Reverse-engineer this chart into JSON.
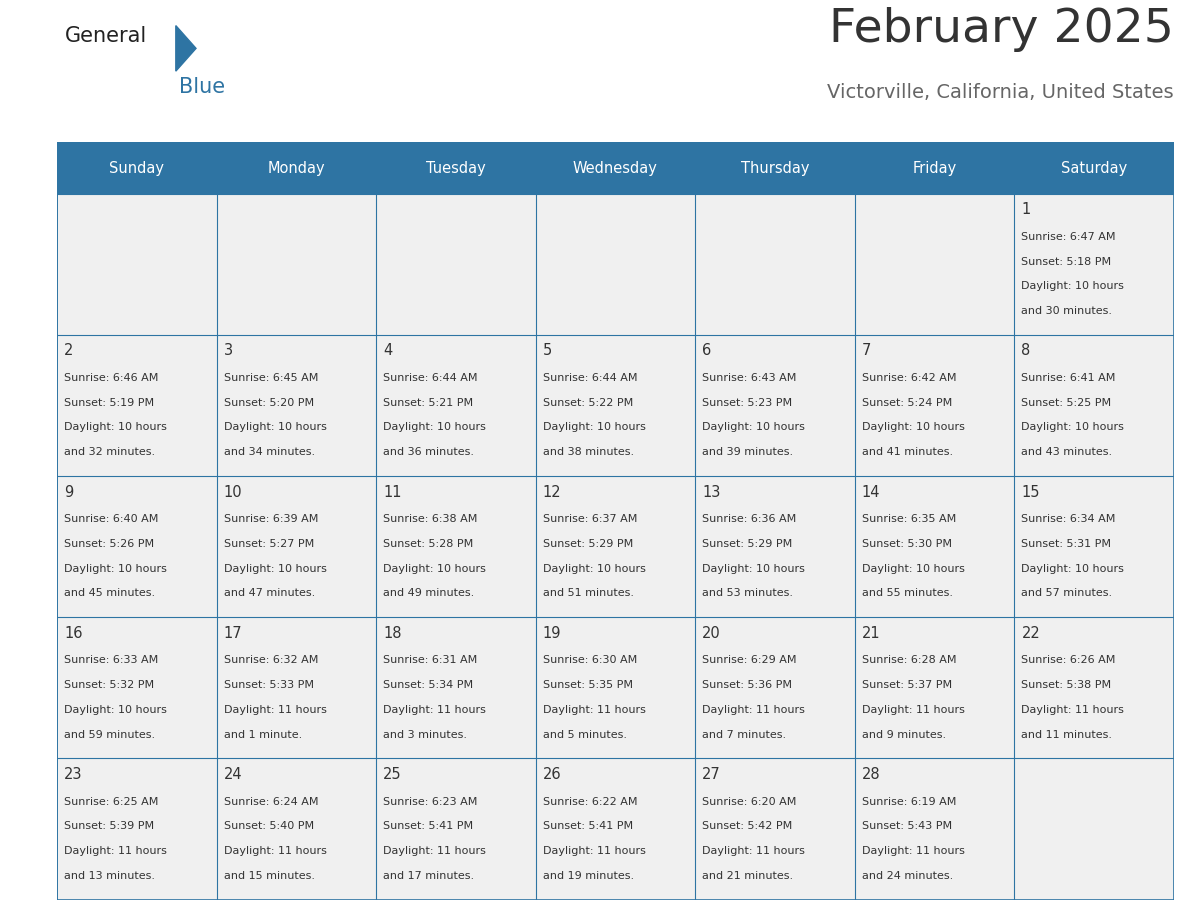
{
  "title": "February 2025",
  "subtitle": "Victorville, California, United States",
  "header_bg": "#2e74a3",
  "header_text": "#ffffff",
  "cell_bg": "#f0f0f0",
  "border_color": "#2e74a3",
  "day_headers": [
    "Sunday",
    "Monday",
    "Tuesday",
    "Wednesday",
    "Thursday",
    "Friday",
    "Saturday"
  ],
  "title_color": "#333333",
  "subtitle_color": "#666666",
  "day_num_color": "#333333",
  "cell_text_color": "#333333",
  "logo_text_color": "#222222",
  "logo_blue_color": "#2e74a3",
  "calendar": [
    [
      null,
      null,
      null,
      null,
      null,
      null,
      {
        "day": 1,
        "sunrise": "6:47 AM",
        "sunset": "5:18 PM",
        "daylight": "10 hours",
        "daylight2": "and 30 minutes."
      }
    ],
    [
      {
        "day": 2,
        "sunrise": "6:46 AM",
        "sunset": "5:19 PM",
        "daylight": "10 hours",
        "daylight2": "and 32 minutes."
      },
      {
        "day": 3,
        "sunrise": "6:45 AM",
        "sunset": "5:20 PM",
        "daylight": "10 hours",
        "daylight2": "and 34 minutes."
      },
      {
        "day": 4,
        "sunrise": "6:44 AM",
        "sunset": "5:21 PM",
        "daylight": "10 hours",
        "daylight2": "and 36 minutes."
      },
      {
        "day": 5,
        "sunrise": "6:44 AM",
        "sunset": "5:22 PM",
        "daylight": "10 hours",
        "daylight2": "and 38 minutes."
      },
      {
        "day": 6,
        "sunrise": "6:43 AM",
        "sunset": "5:23 PM",
        "daylight": "10 hours",
        "daylight2": "and 39 minutes."
      },
      {
        "day": 7,
        "sunrise": "6:42 AM",
        "sunset": "5:24 PM",
        "daylight": "10 hours",
        "daylight2": "and 41 minutes."
      },
      {
        "day": 8,
        "sunrise": "6:41 AM",
        "sunset": "5:25 PM",
        "daylight": "10 hours",
        "daylight2": "and 43 minutes."
      }
    ],
    [
      {
        "day": 9,
        "sunrise": "6:40 AM",
        "sunset": "5:26 PM",
        "daylight": "10 hours",
        "daylight2": "and 45 minutes."
      },
      {
        "day": 10,
        "sunrise": "6:39 AM",
        "sunset": "5:27 PM",
        "daylight": "10 hours",
        "daylight2": "and 47 minutes."
      },
      {
        "day": 11,
        "sunrise": "6:38 AM",
        "sunset": "5:28 PM",
        "daylight": "10 hours",
        "daylight2": "and 49 minutes."
      },
      {
        "day": 12,
        "sunrise": "6:37 AM",
        "sunset": "5:29 PM",
        "daylight": "10 hours",
        "daylight2": "and 51 minutes."
      },
      {
        "day": 13,
        "sunrise": "6:36 AM",
        "sunset": "5:29 PM",
        "daylight": "10 hours",
        "daylight2": "and 53 minutes."
      },
      {
        "day": 14,
        "sunrise": "6:35 AM",
        "sunset": "5:30 PM",
        "daylight": "10 hours",
        "daylight2": "and 55 minutes."
      },
      {
        "day": 15,
        "sunrise": "6:34 AM",
        "sunset": "5:31 PM",
        "daylight": "10 hours",
        "daylight2": "and 57 minutes."
      }
    ],
    [
      {
        "day": 16,
        "sunrise": "6:33 AM",
        "sunset": "5:32 PM",
        "daylight": "10 hours",
        "daylight2": "and 59 minutes."
      },
      {
        "day": 17,
        "sunrise": "6:32 AM",
        "sunset": "5:33 PM",
        "daylight": "11 hours",
        "daylight2": "and 1 minute."
      },
      {
        "day": 18,
        "sunrise": "6:31 AM",
        "sunset": "5:34 PM",
        "daylight": "11 hours",
        "daylight2": "and 3 minutes."
      },
      {
        "day": 19,
        "sunrise": "6:30 AM",
        "sunset": "5:35 PM",
        "daylight": "11 hours",
        "daylight2": "and 5 minutes."
      },
      {
        "day": 20,
        "sunrise": "6:29 AM",
        "sunset": "5:36 PM",
        "daylight": "11 hours",
        "daylight2": "and 7 minutes."
      },
      {
        "day": 21,
        "sunrise": "6:28 AM",
        "sunset": "5:37 PM",
        "daylight": "11 hours",
        "daylight2": "and 9 minutes."
      },
      {
        "day": 22,
        "sunrise": "6:26 AM",
        "sunset": "5:38 PM",
        "daylight": "11 hours",
        "daylight2": "and 11 minutes."
      }
    ],
    [
      {
        "day": 23,
        "sunrise": "6:25 AM",
        "sunset": "5:39 PM",
        "daylight": "11 hours",
        "daylight2": "and 13 minutes."
      },
      {
        "day": 24,
        "sunrise": "6:24 AM",
        "sunset": "5:40 PM",
        "daylight": "11 hours",
        "daylight2": "and 15 minutes."
      },
      {
        "day": 25,
        "sunrise": "6:23 AM",
        "sunset": "5:41 PM",
        "daylight": "11 hours",
        "daylight2": "and 17 minutes."
      },
      {
        "day": 26,
        "sunrise": "6:22 AM",
        "sunset": "5:41 PM",
        "daylight": "11 hours",
        "daylight2": "and 19 minutes."
      },
      {
        "day": 27,
        "sunrise": "6:20 AM",
        "sunset": "5:42 PM",
        "daylight": "11 hours",
        "daylight2": "and 21 minutes."
      },
      {
        "day": 28,
        "sunrise": "6:19 AM",
        "sunset": "5:43 PM",
        "daylight": "11 hours",
        "daylight2": "and 24 minutes."
      },
      null
    ]
  ]
}
